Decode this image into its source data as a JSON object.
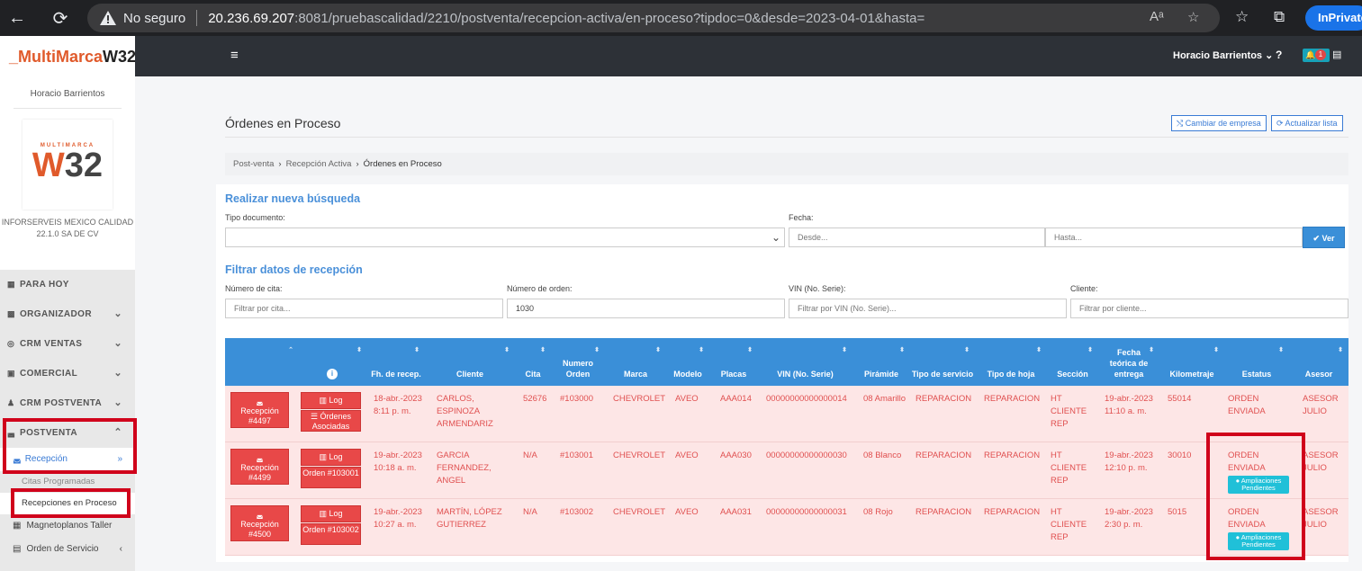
{
  "browser": {
    "security_label": "No seguro",
    "url_host": "20.236.69.207",
    "url_rest": ":8081/pruebascalidad/2210/postventa/recepcion-activa/en-proceso?tipdoc=0&desde=2023-04-01&hasta=",
    "inprivate_label": "InPrivate"
  },
  "app": {
    "logo_part1": "_MultiMarca",
    "logo_part2": "W32",
    "user_name": "Horacio Barrientos",
    "header_user": "Horacio Barrientos ⌄",
    "help_label": "?",
    "notif_count": "1",
    "company_logo_small": "MULTIMARCA",
    "company_logo_w": "W",
    "company_logo_32": "32",
    "company_name_line1": "INFORSERVEIS MEXICO CALIDAD",
    "company_name_line2": "22.1.0 SA DE CV"
  },
  "sidebar": {
    "items": [
      {
        "label": "PARA HOY",
        "icon": "calendar-icon"
      },
      {
        "label": "ORGANIZADOR",
        "icon": "grid-icon"
      },
      {
        "label": "CRM VENTAS",
        "icon": "circle-icon"
      },
      {
        "label": "COMERCIAL",
        "icon": "briefcase-icon"
      },
      {
        "label": "CRM POSTVENTA",
        "icon": "user-icon"
      },
      {
        "label": "POSTVENTA",
        "icon": "car-icon"
      }
    ],
    "sub_recepcion": "Recepción",
    "sub_citas": "Citas Programadas",
    "sub_recepciones": "Recepciones en Proceso",
    "sub_magneto": "Magnetoplanos Taller",
    "sub_orden": "Orden de Servicio"
  },
  "page": {
    "title": "Órdenes en Proceso",
    "btn_cambiar": "⤭ Cambiar de empresa",
    "btn_actualizar": "⟳ Actualizar lista",
    "breadcrumb": [
      "Post-venta",
      "Recepción Activa",
      "Órdenes en Proceso"
    ]
  },
  "search": {
    "title": "Realizar nueva búsqueda",
    "tipo_label": "Tipo documento:",
    "fecha_label": "Fecha:",
    "desde_placeholder": "Desde...",
    "hasta_placeholder": "Hasta...",
    "ver_label": "✔ Ver"
  },
  "filter": {
    "title": "Filtrar datos de recepción",
    "cita_label": "Número de cita:",
    "cita_placeholder": "Filtrar por cita...",
    "orden_label": "Número de orden:",
    "orden_value": "1030",
    "vin_label": "VIN (No. Serie):",
    "vin_placeholder": "Filtrar por VIN (No. Serie)...",
    "cliente_label": "Cliente:",
    "cliente_placeholder": "Filtrar por cliente..."
  },
  "table": {
    "headers": {
      "fh": "Fh. de recep.",
      "cliente": "Cliente",
      "cita": "Cita",
      "numero": "Numero Orden",
      "marca": "Marca",
      "modelo": "Modelo",
      "placas": "Placas",
      "vin": "VIN (No. Serie)",
      "piramide": "Pirámide",
      "tipo_servicio": "Tipo de servicio",
      "tipo_hoja": "Tipo de hoja",
      "seccion": "Sección",
      "fecha_teorica": "Fecha teórica de entrega",
      "km": "Kilometraje",
      "estatus": "Estatus",
      "asesor": "Asesor"
    },
    "rows": [
      {
        "rec_btn": "Recepción #4497",
        "log": "Log",
        "second_btn": "Órdenes Asociadas",
        "fh": "18-abr.-2023 8:11 p. m.",
        "cliente": "CARLOS, ESPINOZA ARMENDARIZ",
        "cita": "52676",
        "numero": "#103000",
        "marca": "CHEVROLET",
        "modelo": "AVEO",
        "placas": "AAA014",
        "vin": "00000000000000014",
        "piramide": "08 Amarillo",
        "tipo_servicio": "REPARACION",
        "tipo_hoja": "REPARACION",
        "seccion": "HT CLIENTE REP",
        "fecha_teorica": "19-abr.-2023 11:10 a. m.",
        "km": "55014",
        "estatus": "ORDEN ENVIADA",
        "badge": "",
        "asesor": "ASESOR JULIO"
      },
      {
        "rec_btn": "Recepción #4499",
        "log": "Log",
        "second_btn": "Orden #103001",
        "fh": "19-abr.-2023 10:18 a. m.",
        "cliente": "GARCIA FERNANDEZ, ANGEL",
        "cita": "N/A",
        "numero": "#103001",
        "marca": "CHEVROLET",
        "modelo": "AVEO",
        "placas": "AAA030",
        "vin": "00000000000000030",
        "piramide": "08 Blanco",
        "tipo_servicio": "REPARACION",
        "tipo_hoja": "REPARACION",
        "seccion": "HT CLIENTE REP",
        "fecha_teorica": "19-abr.-2023 12:10 p. m.",
        "km": "30010",
        "estatus": "ORDEN ENVIADA",
        "badge": "Ampliaciones Pendientes",
        "asesor": "ASESOR JULIO"
      },
      {
        "rec_btn": "Recepción #4500",
        "log": "Log",
        "second_btn": "Orden #103002",
        "fh": "19-abr.-2023 10:27 a. m.",
        "cliente": "MARTÍN, LÓPEZ GUTIERREZ",
        "cita": "N/A",
        "numero": "#103002",
        "marca": "CHEVROLET",
        "modelo": "AVEO",
        "placas": "AAA031",
        "vin": "00000000000000031",
        "piramide": "08 Rojo",
        "tipo_servicio": "REPARACION",
        "tipo_hoja": "REPARACION",
        "seccion": "HT CLIENTE REP",
        "fecha_teorica": "19-abr.-2023 2:30 p. m.",
        "km": "5015",
        "estatus": "ORDEN ENVIADA",
        "badge": "Ampliaciones Pendientes",
        "asesor": "ASESOR JULIO"
      }
    ]
  },
  "colors": {
    "accent": "#3a8fd8",
    "row_bg": "#fde6e6",
    "row_text": "#e05050",
    "button_red": "#e84848",
    "badge_teal": "#20c0d8",
    "highlight_red": "#d0021b"
  }
}
